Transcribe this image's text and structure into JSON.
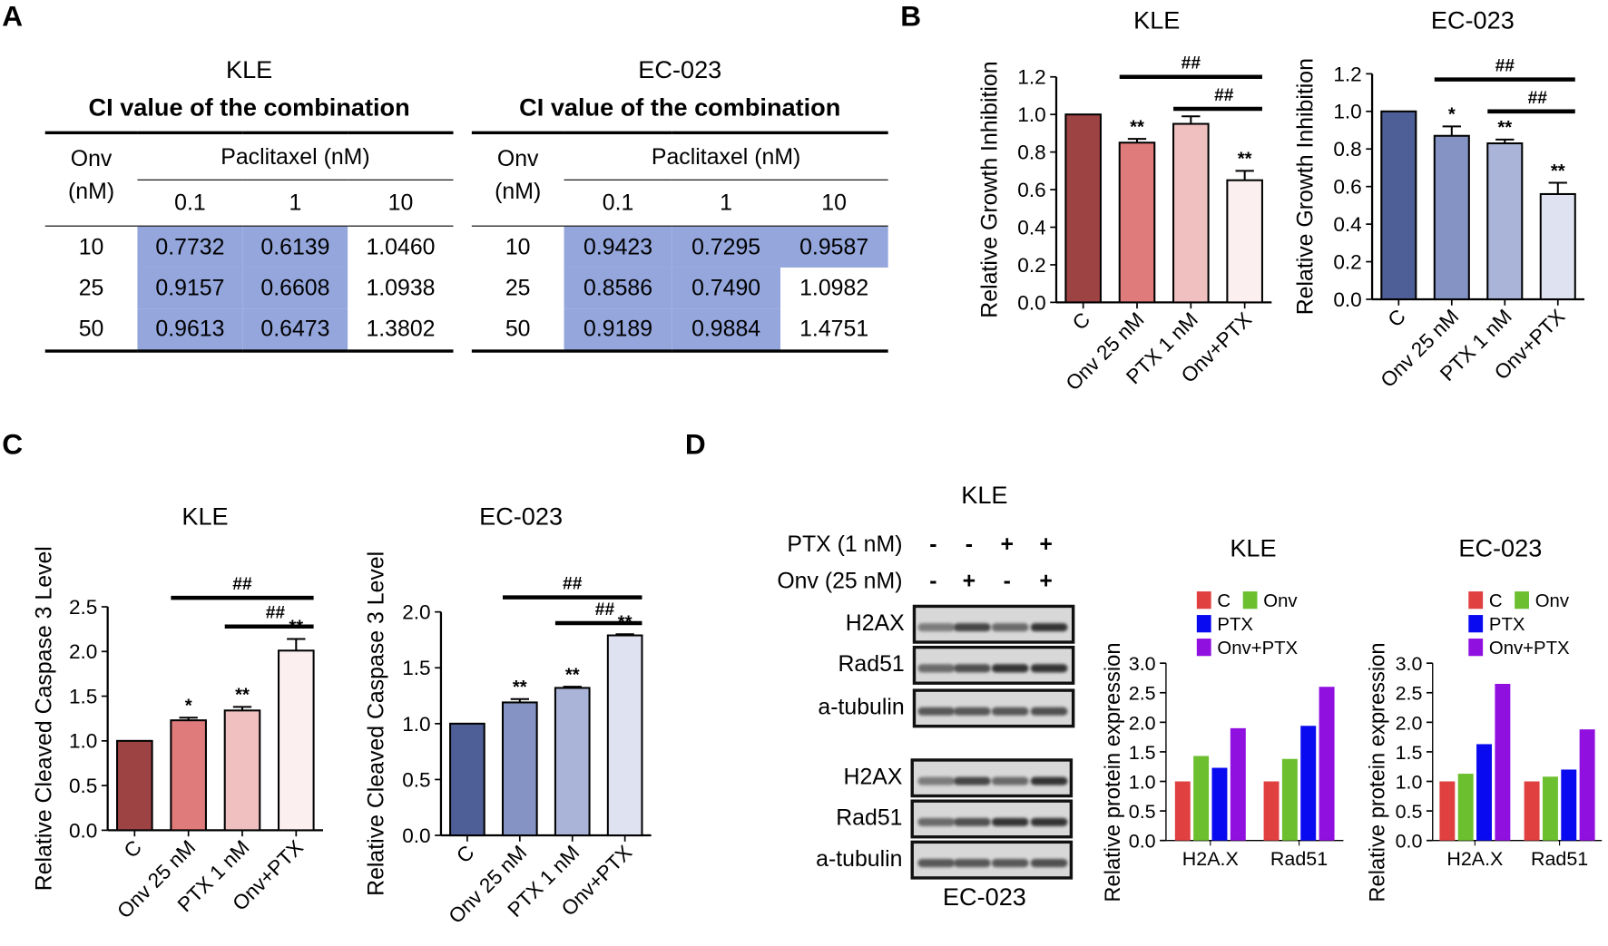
{
  "panels": {
    "A": "A",
    "B": "B",
    "C": "C",
    "D": "D"
  },
  "panelA": {
    "tables": [
      {
        "cell_line": "KLE",
        "caption": "CI value of the combination",
        "row_header": [
          "Onv",
          "(nM)"
        ],
        "col_group": "Paclitaxel (nM)",
        "cols": [
          "0.1",
          "1",
          "10"
        ],
        "rows": [
          {
            "onv": "10",
            "vals": [
              "0.7732",
              "0.6139",
              "1.0460"
            ],
            "hl": [
              true,
              true,
              false
            ]
          },
          {
            "onv": "25",
            "vals": [
              "0.9157",
              "0.6608",
              "1.0938"
            ],
            "hl": [
              true,
              true,
              false
            ]
          },
          {
            "onv": "50",
            "vals": [
              "0.9613",
              "0.6473",
              "1.3802"
            ],
            "hl": [
              true,
              true,
              false
            ]
          }
        ]
      },
      {
        "cell_line": "EC-023",
        "caption": "CI value of the combination",
        "row_header": [
          "Onv",
          "(nM)"
        ],
        "col_group": "Paclitaxel (nM)",
        "cols": [
          "0.1",
          "1",
          "10"
        ],
        "rows": [
          {
            "onv": "10",
            "vals": [
              "0.9423",
              "0.7295",
              "0.9587"
            ],
            "hl": [
              true,
              true,
              true
            ]
          },
          {
            "onv": "25",
            "vals": [
              "0.8586",
              "0.7490",
              "1.0982"
            ],
            "hl": [
              true,
              true,
              false
            ]
          },
          {
            "onv": "50",
            "vals": [
              "0.9189",
              "0.9884",
              "1.4751"
            ],
            "hl": [
              true,
              true,
              false
            ]
          }
        ]
      }
    ]
  },
  "panelD_blot": {
    "title": "KLE",
    "bottom_title": "EC-023",
    "conditions": [
      {
        "label": "PTX (1 nM)",
        "signs": [
          "-",
          "-",
          "+",
          "+"
        ]
      },
      {
        "label": "Onv (25 nM)",
        "signs": [
          "-",
          "+",
          "-",
          "+"
        ]
      }
    ],
    "kle_rows": [
      "H2AX",
      "Rad51",
      "a-tubulin"
    ],
    "ec_rows": [
      "H2AX",
      "Rad51",
      "a-tubulin"
    ]
  },
  "chart_data": [
    {
      "id": "B-KLE",
      "type": "bar",
      "title": "KLE",
      "ylabel": "Relative Growth Inhibition",
      "ylim": [
        0,
        1.2
      ],
      "yticks": [
        "0.0",
        "0.2",
        "0.4",
        "0.6",
        "0.8",
        "1.0",
        "1.2"
      ],
      "categories": [
        "C",
        "Onv 25 nM",
        "PTX 1 nM",
        "Onv+PTX"
      ],
      "values": [
        1.0,
        0.85,
        0.95,
        0.65
      ],
      "errors": [
        0,
        0.02,
        0.04,
        0.05
      ],
      "stars": [
        "",
        "**",
        "",
        "**"
      ],
      "colors": [
        "#9e4343",
        "#e07b7b",
        "#f0c0c0",
        "#fbf0ef"
      ],
      "brackets": [
        {
          "from": 1,
          "to": 3,
          "level": 1.2,
          "label": "##"
        },
        {
          "from": 2,
          "to": 3,
          "level": 1.03,
          "label": "##"
        }
      ]
    },
    {
      "id": "B-EC",
      "type": "bar",
      "title": "EC-023",
      "ylabel": "Relative Growth Inhibition",
      "ylim": [
        0,
        1.2
      ],
      "yticks": [
        "0.0",
        "0.2",
        "0.4",
        "0.6",
        "0.8",
        "1.0",
        "1.2"
      ],
      "categories": [
        "C",
        "Onv 25 nM",
        "PTX 1 nM",
        "Onv+PTX"
      ],
      "values": [
        1.0,
        0.87,
        0.83,
        0.56
      ],
      "errors": [
        0,
        0.05,
        0.02,
        0.06
      ],
      "stars": [
        "",
        "*",
        "**",
        "**"
      ],
      "colors": [
        "#4e5e96",
        "#8493c4",
        "#aab4d8",
        "#dfe2f0"
      ],
      "brackets": [
        {
          "from": 1,
          "to": 3,
          "level": 1.17,
          "label": "##"
        },
        {
          "from": 2,
          "to": 3,
          "level": 1.0,
          "label": "##"
        }
      ]
    },
    {
      "id": "C-KLE",
      "type": "bar",
      "title": "KLE",
      "ylabel": "Relative Cleaved Caspase 3 Level",
      "ylim": [
        0,
        2.5
      ],
      "yticks": [
        "0.0",
        "0.5",
        "1.0",
        "1.5",
        "2.0",
        "2.5"
      ],
      "categories": [
        "C",
        "Onv 25 nM",
        "PTX 1 nM",
        "Onv+PTX"
      ],
      "values": [
        1.0,
        1.23,
        1.34,
        2.01
      ],
      "errors": [
        0,
        0.03,
        0.04,
        0.13
      ],
      "stars": [
        "",
        "*",
        "**",
        "**"
      ],
      "colors": [
        "#9e4343",
        "#e07b7b",
        "#f0c0c0",
        "#fbf0ef"
      ],
      "brackets": [
        {
          "from": 1,
          "to": 3,
          "level": 2.6,
          "label": "##"
        },
        {
          "from": 2,
          "to": 3,
          "level": 2.28,
          "label": "##"
        }
      ]
    },
    {
      "id": "C-EC",
      "type": "bar",
      "title": "EC-023",
      "ylabel": "Relative Cleaved Caspase 3 Level",
      "ylim": [
        0,
        2.0
      ],
      "yticks": [
        "0.0",
        "0.5",
        "1.0",
        "1.5",
        "2.0"
      ],
      "categories": [
        "C",
        "Onv 25 nM",
        "PTX 1 nM",
        "Onv+PTX"
      ],
      "values": [
        1.0,
        1.19,
        1.32,
        1.79
      ],
      "errors": [
        0,
        0.03,
        0.01,
        0.01
      ],
      "stars": [
        "",
        "**",
        "**",
        "**"
      ],
      "colors": [
        "#4e5e96",
        "#8493c4",
        "#aab4d8",
        "#dfe2f0"
      ],
      "brackets": [
        {
          "from": 1,
          "to": 3,
          "level": 2.13,
          "label": "##"
        },
        {
          "from": 2,
          "to": 3,
          "level": 1.9,
          "label": "##"
        }
      ]
    },
    {
      "id": "D-KLE",
      "type": "grouped-bar",
      "title": "KLE",
      "ylabel": "Relative protein expression",
      "ylim": [
        0,
        3.0
      ],
      "yticks": [
        "0.0",
        "0.5",
        "1.0",
        "1.5",
        "2.0",
        "2.5",
        "3.0"
      ],
      "categories": [
        "H2A.X",
        "Rad51"
      ],
      "series": [
        {
          "name": "C",
          "color": "#e04040",
          "values": [
            1.0,
            1.0
          ]
        },
        {
          "name": "Onv",
          "color": "#6cc030",
          "values": [
            1.43,
            1.38
          ]
        },
        {
          "name": "PTX",
          "color": "#0a0af0",
          "values": [
            1.23,
            1.94
          ]
        },
        {
          "name": "Onv+PTX",
          "color": "#9010e0",
          "values": [
            1.9,
            2.6
          ]
        }
      ],
      "legend": "top"
    },
    {
      "id": "D-EC",
      "type": "grouped-bar",
      "title": "EC-023",
      "ylabel": "Relative protein expression",
      "ylim": [
        0,
        3.0
      ],
      "yticks": [
        "0.0",
        "0.5",
        "1.0",
        "1.5",
        "2.0",
        "2.5",
        "3.0"
      ],
      "categories": [
        "H2A.X",
        "Rad51"
      ],
      "series": [
        {
          "name": "C",
          "color": "#e04040",
          "values": [
            1.0,
            1.0
          ]
        },
        {
          "name": "Onv",
          "color": "#6cc030",
          "values": [
            1.13,
            1.08
          ]
        },
        {
          "name": "PTX",
          "color": "#0a0af0",
          "values": [
            1.63,
            1.2
          ]
        },
        {
          "name": "Onv+PTX",
          "color": "#9010e0",
          "values": [
            2.65,
            1.88
          ]
        }
      ],
      "legend": "top"
    }
  ]
}
